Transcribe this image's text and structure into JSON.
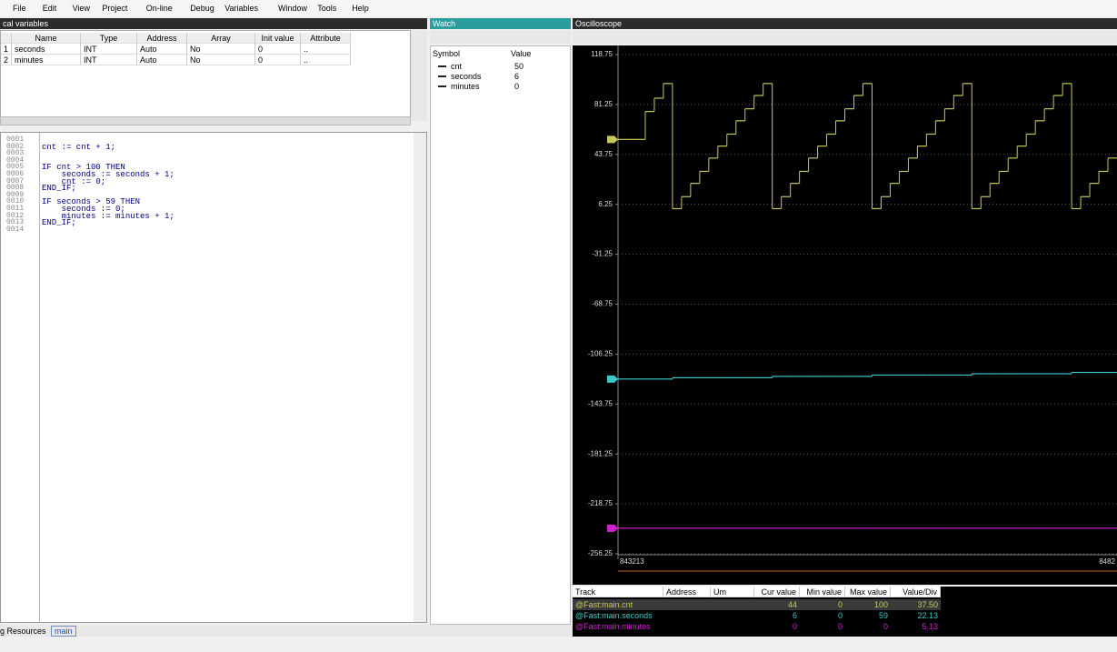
{
  "menu": [
    "File",
    "Edit",
    "View",
    "Project",
    "On-line",
    "Debug",
    "Variables",
    "Window",
    "Tools",
    "Help"
  ],
  "local_variables": {
    "title": "cal variables",
    "columns": [
      "Name",
      "Type",
      "Address",
      "Array",
      "Init value",
      "Attribute"
    ],
    "rows": [
      {
        "index": "1",
        "cells": [
          "seconds",
          "INT",
          "Auto",
          "No",
          "0",
          ".."
        ]
      },
      {
        "index": "2",
        "cells": [
          "minutes",
          "INT",
          "Auto",
          "No",
          "0",
          ".."
        ]
      }
    ]
  },
  "editor": {
    "lines": [
      {
        "number": "0001"
      },
      {
        "number": "0002",
        "code": "cnt := cnt + 1;"
      },
      {
        "number": "0003"
      },
      {
        "number": "0004"
      },
      {
        "number": "0005",
        "code": "IF cnt > 100 THEN"
      },
      {
        "number": "0006",
        "code": "    seconds := seconds + 1;"
      },
      {
        "number": "0007",
        "code": "    cnt := 0;"
      },
      {
        "number": "0008",
        "code": "END_IF;"
      },
      {
        "number": "0009"
      },
      {
        "number": "0010",
        "code": "IF seconds > 59 THEN"
      },
      {
        "number": "0011",
        "code": "    seconds := 0;"
      },
      {
        "number": "0012",
        "code": "    minutes := minutes + 1;"
      },
      {
        "number": "0013",
        "code": "END_IF;"
      },
      {
        "number": "0014"
      }
    ]
  },
  "watch": {
    "title": "Watch",
    "columns": [
      "Symbol",
      "Value"
    ],
    "rows": [
      {
        "symbol": "cnt",
        "value": "50"
      },
      {
        "symbol": "seconds",
        "value": "6"
      },
      {
        "symbol": "minutes",
        "value": "0"
      }
    ]
  },
  "chart_data": {
    "type": "line",
    "title": "Oscilloscope",
    "ylim": [
      -256.25,
      118.75
    ],
    "yticks": [
      118.75,
      81.25,
      43.75,
      6.25,
      -31.25,
      -68.75,
      -106.25,
      -143.75,
      -181.25,
      -218.75,
      -256.25
    ],
    "x_start_label": "843213",
    "x_end_label": "8482",
    "series": [
      {
        "name": "@Fast:main.cnt",
        "color": "#c8c858",
        "values": [
          55,
          55,
          55,
          76,
          86,
          97,
          3,
          12,
          22,
          31,
          41,
          50,
          59,
          69,
          78,
          88,
          97,
          3,
          12,
          22,
          31,
          41,
          50,
          59,
          69,
          78,
          88,
          97,
          3,
          12,
          22,
          31,
          41,
          50,
          59,
          69,
          78,
          88,
          97,
          3,
          12,
          22,
          31,
          41,
          50,
          59,
          69,
          78,
          88,
          97,
          3,
          12,
          22,
          31,
          41
        ]
      },
      {
        "name": "@Fast:main.seconds",
        "color": "#40c8c8",
        "values": [
          -125,
          -125,
          -125,
          -125,
          -125,
          -125,
          -124,
          -124,
          -124,
          -124,
          -124,
          -124,
          -124,
          -124,
          -124,
          -124,
          -124,
          -123,
          -123,
          -123,
          -123,
          -123,
          -123,
          -123,
          -123,
          -123,
          -123,
          -123,
          -122,
          -122,
          -122,
          -122,
          -122,
          -122,
          -122,
          -122,
          -122,
          -122,
          -122,
          -121,
          -121,
          -121,
          -121,
          -121,
          -121,
          -121,
          -121,
          -121,
          -121,
          -121,
          -120,
          -120,
          -120,
          -120,
          -120
        ]
      },
      {
        "name": "@Fast:main.minutes",
        "color": "#d020d0",
        "values": [
          -237,
          -237,
          -237,
          -237,
          -237,
          -237,
          -237,
          -237,
          -237,
          -237,
          -237,
          -237,
          -237,
          -237,
          -237,
          -237,
          -237,
          -237,
          -237,
          -237,
          -237,
          -237,
          -237,
          -237,
          -237,
          -237,
          -237,
          -237,
          -237,
          -237,
          -237,
          -237,
          -237,
          -237,
          -237,
          -237,
          -237,
          -237,
          -237,
          -237,
          -237,
          -237,
          -237,
          -237,
          -237,
          -237,
          -237,
          -237,
          -237,
          -237,
          -237,
          -237,
          -237,
          -237,
          -237
        ]
      }
    ]
  },
  "track_table": {
    "columns": [
      "Track",
      "Address",
      "Um",
      "Cur value",
      "Min value",
      "Max value",
      "Value/Div"
    ],
    "rows": [
      {
        "track": "@Fast:main.cnt",
        "cur": "44",
        "min": "0",
        "max": "100",
        "div": "37.50"
      },
      {
        "track": "@Fast:main.seconds",
        "cur": "6",
        "min": "0",
        "max": "59",
        "div": "22.13"
      },
      {
        "track": "@Fast:main.minutes",
        "cur": "0",
        "min": "0",
        "max": "0",
        "div": "5.13"
      }
    ]
  },
  "status": {
    "tabs": [
      "g Resources",
      "main"
    ]
  }
}
